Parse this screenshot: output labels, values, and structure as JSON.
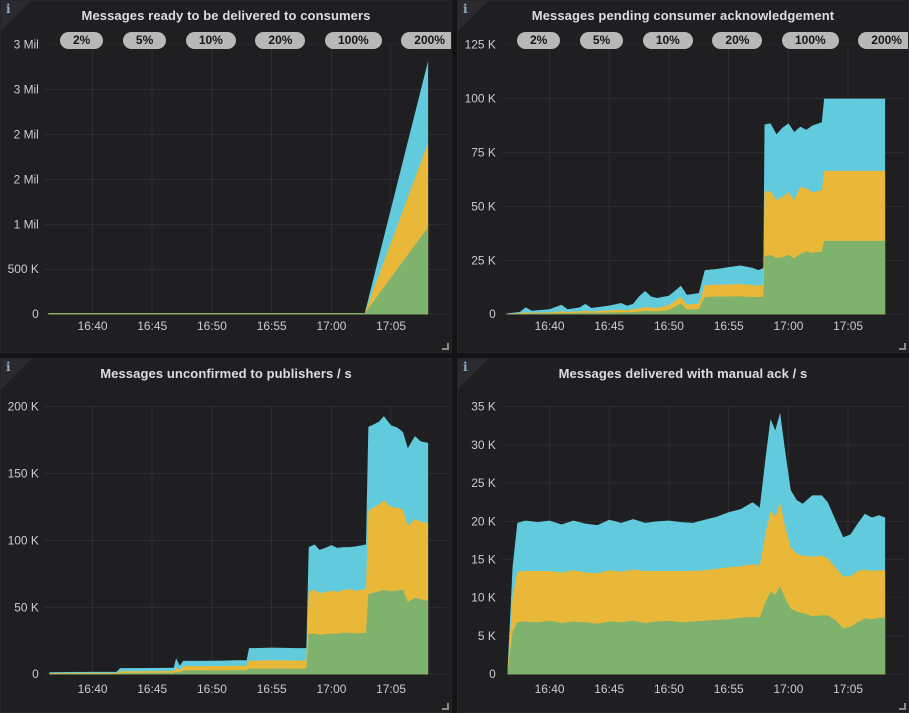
{
  "ui": {
    "info_icon": "i",
    "badges": [
      "2%",
      "5%",
      "10%",
      "20%",
      "100%",
      "200%"
    ],
    "colors": {
      "series_green": "#7eb26d",
      "series_yellow": "#eab839",
      "series_blue": "#61cbdd",
      "page_bg": "#131316",
      "panel_bg": "#1f1f22",
      "gridline": "#2d2d31",
      "title_text": "#dcdde2",
      "tick_text": "#c9cdd3",
      "badge_bg": "#b8b8b8",
      "badge_text": "#161616"
    }
  },
  "x_axis": {
    "max_minutes": 32.1,
    "ticks": [
      {
        "m": 4,
        "label": "16:40"
      },
      {
        "m": 9,
        "label": "16:45"
      },
      {
        "m": 14,
        "label": "16:50"
      },
      {
        "m": 19,
        "label": "16:55"
      },
      {
        "m": 24,
        "label": "17:00"
      },
      {
        "m": 29,
        "label": "17:05"
      }
    ]
  },
  "chart_data": [
    {
      "id": "ready",
      "type": "area",
      "stacked": true,
      "row": "top",
      "show_badges": true,
      "title": "Messages ready to be delivered to consumers",
      "y_unit": "Mil",
      "ylim": [
        0,
        3
      ],
      "y_ticks": [
        {
          "v": 3,
          "label": "3 Mil"
        },
        {
          "v": 2.5,
          "label": "3 Mil"
        },
        {
          "v": 2,
          "label": "2 Mil"
        },
        {
          "v": 1.5,
          "label": "2 Mil"
        },
        {
          "v": 1,
          "label": "1 Mil"
        },
        {
          "v": 0.5,
          "label": "500 K"
        },
        {
          "v": 0,
          "label": "0"
        }
      ],
      "x_minutes": [
        0.3,
        26.8,
        32.1
      ],
      "series": [
        {
          "name": "green",
          "color": "#7eb26d",
          "values": [
            0.012,
            0.012,
            0.97
          ]
        },
        {
          "name": "yellow",
          "color": "#eab839",
          "values": [
            0,
            0,
            0.94
          ]
        },
        {
          "name": "blue",
          "color": "#61cbdd",
          "values": [
            0,
            0,
            0.91
          ]
        }
      ]
    },
    {
      "id": "pending",
      "type": "area",
      "stacked": true,
      "row": "top",
      "show_badges": true,
      "title": "Messages pending consumer acknowledgement",
      "y_unit": "K",
      "ylim": [
        0,
        125
      ],
      "y_ticks": [
        {
          "v": 125,
          "label": "125 K"
        },
        {
          "v": 100,
          "label": "100 K"
        },
        {
          "v": 75,
          "label": "75 K"
        },
        {
          "v": 50,
          "label": "50 K"
        },
        {
          "v": 25,
          "label": "25 K"
        },
        {
          "v": 0,
          "label": "0"
        }
      ],
      "x_minutes": [
        0.4,
        1.5,
        2,
        2.5,
        4,
        5,
        5.5,
        6.5,
        7,
        7.5,
        9,
        10,
        10.5,
        11,
        11.5,
        12,
        12.5,
        13,
        14,
        15,
        15.5,
        16.5,
        17,
        18,
        19,
        20,
        21,
        21.5,
        21.9,
        22,
        22.5,
        23,
        23.5,
        24,
        24.5,
        25,
        25.5,
        26,
        26.8,
        27,
        32.1
      ],
      "series": [
        {
          "name": "green",
          "color": "#7eb26d",
          "values": [
            0.1,
            0.2,
            0.3,
            0.3,
            0.4,
            0.5,
            0.5,
            0.6,
            0.7,
            0.6,
            0.8,
            0.9,
            0.9,
            1.0,
            1.2,
            1.5,
            1.4,
            1.4,
            2.0,
            5.0,
            2.2,
            2.4,
            8.0,
            8.2,
            8.2,
            8.3,
            8.0,
            8.0,
            8.0,
            27,
            27.5,
            26,
            26.5,
            27.5,
            26,
            28,
            29,
            28.5,
            29,
            34,
            34
          ]
        },
        {
          "name": "yellow",
          "color": "#eab839",
          "values": [
            0.1,
            0.3,
            0.6,
            0.4,
            0.5,
            0.8,
            0.6,
            0.7,
            0.9,
            0.7,
            1.0,
            1.1,
            1.0,
            1.2,
            1.5,
            1.8,
            1.6,
            1.5,
            2.2,
            3.0,
            2.3,
            2.5,
            5.5,
            5.5,
            5.6,
            5.7,
            5.5,
            5.3,
            5.8,
            30,
            29.5,
            27,
            28,
            29,
            27,
            31,
            29.5,
            28,
            28.5,
            32.5,
            32.5
          ]
        },
        {
          "name": "blue",
          "color": "#61cbdd",
          "values": [
            0.1,
            0.5,
            2.3,
            0.9,
            1.4,
            3.1,
            1.2,
            1.8,
            3.2,
            1.6,
            2.2,
            3.2,
            2.0,
            2.6,
            5.6,
            7.5,
            5.2,
            4.6,
            4.4,
            5.2,
            4.5,
            4.9,
            7.0,
            7.3,
            8.0,
            8.6,
            8.0,
            7.2,
            7.7,
            31,
            31.5,
            30.5,
            32,
            32,
            31.5,
            28,
            27,
            31,
            31.5,
            33.5,
            33.5
          ]
        }
      ]
    },
    {
      "id": "unconfirmed",
      "type": "area",
      "stacked": true,
      "row": "bottom",
      "show_badges": false,
      "title": "Messages unconfirmed to publishers / s",
      "y_unit": "K",
      "ylim": [
        0,
        200
      ],
      "y_ticks": [
        {
          "v": 200,
          "label": "200 K"
        },
        {
          "v": 150,
          "label": "150 K"
        },
        {
          "v": 100,
          "label": "100 K"
        },
        {
          "v": 50,
          "label": "50 K"
        },
        {
          "v": 0,
          "label": "0"
        }
      ],
      "x_minutes": [
        0.4,
        2,
        4,
        6,
        6.3,
        9,
        10.8,
        11,
        11.3,
        11.6,
        13,
        14,
        15,
        16,
        16.9,
        17.1,
        18,
        19,
        20,
        21,
        21.9,
        22.1,
        22.6,
        23,
        23.5,
        24,
        24.5,
        25,
        25.5,
        26,
        26.9,
        27.1,
        27.6,
        28,
        28.4,
        29,
        29.5,
        30,
        30.4,
        31,
        31.5,
        32.1
      ],
      "series": [
        {
          "name": "green",
          "color": "#7eb26d",
          "values": [
            0.3,
            0.35,
            0.4,
            0.4,
            0.9,
            0.95,
            1.0,
            2.0,
            1.2,
            2.8,
            2.8,
            2.9,
            2.9,
            3.0,
            3.0,
            4.2,
            4.2,
            4.3,
            4.3,
            4.2,
            4.2,
            30,
            30.5,
            29.5,
            30,
            30.5,
            30,
            31,
            31,
            30.5,
            31,
            60,
            61,
            62,
            63,
            62,
            62.5,
            63,
            54,
            57,
            56,
            55
          ]
        },
        {
          "name": "yellow",
          "color": "#eab839",
          "values": [
            0.5,
            0.55,
            0.6,
            0.6,
            1.3,
            1.35,
            1.4,
            3.0,
            1.8,
            3.2,
            3.2,
            3.2,
            3.3,
            3.3,
            3.4,
            6.0,
            6.0,
            6.1,
            6.0,
            6.0,
            6.0,
            32,
            32.5,
            31,
            31.5,
            32,
            31.5,
            32,
            32.5,
            32,
            32.5,
            62,
            64,
            65,
            67,
            63,
            62,
            60,
            57,
            59,
            58,
            58
          ]
        },
        {
          "name": "blue",
          "color": "#61cbdd",
          "values": [
            0.7,
            0.75,
            0.8,
            0.8,
            2.3,
            2.3,
            2.4,
            7.0,
            3.5,
            4.0,
            4.0,
            4.0,
            4.0,
            4.1,
            4.1,
            9.3,
            9.4,
            9.5,
            9.4,
            9.3,
            9.3,
            33,
            34,
            32.5,
            33,
            34,
            33,
            32,
            31.5,
            33,
            33.5,
            63,
            62,
            62,
            63,
            61,
            60,
            58,
            58,
            62,
            60,
            60
          ]
        }
      ]
    },
    {
      "id": "delivered",
      "type": "area",
      "stacked": true,
      "row": "bottom",
      "show_badges": false,
      "title": "Messages delivered with manual ack / s",
      "y_unit": "K",
      "ylim": [
        0,
        35
      ],
      "y_ticks": [
        {
          "v": 35,
          "label": "35 K"
        },
        {
          "v": 30,
          "label": "30 K"
        },
        {
          "v": 25,
          "label": "25 K"
        },
        {
          "v": 20,
          "label": "20 K"
        },
        {
          "v": 15,
          "label": "15 K"
        },
        {
          "v": 10,
          "label": "10 K"
        },
        {
          "v": 5,
          "label": "5 K"
        },
        {
          "v": 0,
          "label": "0"
        }
      ],
      "x_minutes": [
        0.5,
        0.9,
        1.3,
        2,
        3,
        4,
        5,
        6,
        7,
        8,
        9,
        10,
        11,
        12,
        13,
        14,
        15,
        16,
        17,
        18,
        19,
        20,
        21,
        21.6,
        22.1,
        22.5,
        22.9,
        23.3,
        23.7,
        24.2,
        24.7,
        25.2,
        26,
        26.8,
        27.3,
        28,
        28.6,
        29.2,
        29.8,
        30.4,
        31,
        31.6,
        32.1
      ],
      "series": [
        {
          "name": "green",
          "color": "#7eb26d",
          "values": [
            0.5,
            5.5,
            6.8,
            6.9,
            6.8,
            7.0,
            6.7,
            6.9,
            6.8,
            6.6,
            6.9,
            6.8,
            7.0,
            6.7,
            6.9,
            7.0,
            6.8,
            6.9,
            7.0,
            7.1,
            7.2,
            7.4,
            7.5,
            7.4,
            9.5,
            10.8,
            10.4,
            11.5,
            10.0,
            8.6,
            8.2,
            8.0,
            7.6,
            7.7,
            7.7,
            7.0,
            6.0,
            6.2,
            6.8,
            7.3,
            7.2,
            7.4,
            7.4
          ]
        },
        {
          "name": "yellow",
          "color": "#eab839",
          "values": [
            0.4,
            4.5,
            6.6,
            6.6,
            6.7,
            6.5,
            6.6,
            6.7,
            6.5,
            6.6,
            6.7,
            6.6,
            6.7,
            6.8,
            6.6,
            6.5,
            6.7,
            6.6,
            6.6,
            6.7,
            6.8,
            6.7,
            6.9,
            6.8,
            9.0,
            10.5,
            10.2,
            11.0,
            9.5,
            8.0,
            7.6,
            7.5,
            7.8,
            7.8,
            7.5,
            6.9,
            6.8,
            6.6,
            6.7,
            6.4,
            6.3,
            6.2,
            6.2
          ]
        },
        {
          "name": "blue",
          "color": "#61cbdd",
          "values": [
            0.3,
            4.0,
            6.4,
            6.6,
            6.4,
            6.6,
            6.3,
            6.5,
            6.4,
            6.3,
            6.6,
            6.4,
            6.6,
            6.3,
            6.5,
            6.6,
            6.4,
            6.3,
            6.6,
            6.8,
            7.2,
            7.5,
            8.1,
            7.6,
            10.0,
            12.1,
            11.3,
            11.7,
            10.0,
            7.5,
            7.0,
            6.8,
            8.0,
            7.9,
            7.3,
            6.1,
            5.1,
            5.5,
            6.2,
            7.3,
            7.0,
            7.2,
            6.9
          ]
        }
      ]
    }
  ]
}
